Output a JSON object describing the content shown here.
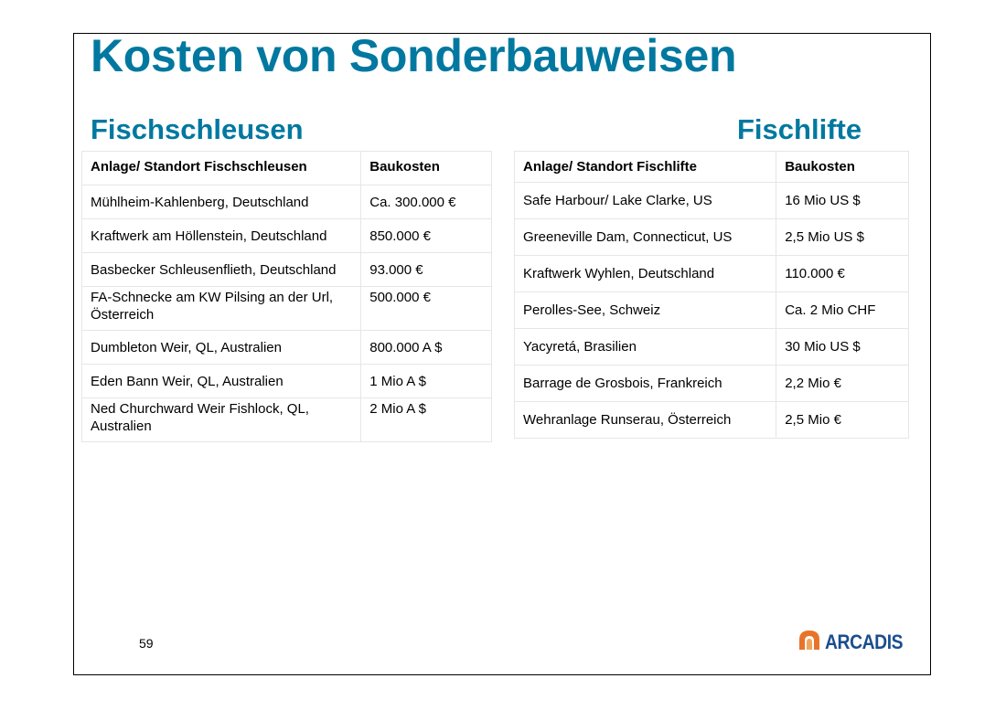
{
  "title": "Kosten von Sonderbauweisen",
  "left": {
    "heading": "Fischschleusen",
    "columns": [
      "Anlage/ Standort Fischschleusen",
      "Baukosten"
    ],
    "rows": [
      [
        "Mühlheim-Kahlenberg, Deutschland",
        "Ca. 300.000 €"
      ],
      [
        "Kraftwerk am Höllenstein, Deutschland",
        "850.000 €"
      ],
      [
        "Basbecker Schleusenflieth, Deutschland",
        "93.000 €"
      ],
      [
        "FA-Schnecke am KW Pilsing an der Url, Österreich",
        "500.000 €"
      ],
      [
        "Dumbleton Weir, QL, Australien",
        "800.000 A $"
      ],
      [
        "Eden Bann Weir, QL, Australien",
        "1 Mio A $"
      ],
      [
        "Ned Churchward Weir Fishlock, QL, Australien",
        "2 Mio A $"
      ]
    ]
  },
  "right": {
    "heading": "Fischlifte",
    "columns": [
      "Anlage/ Standort Fischlifte",
      "Baukosten"
    ],
    "rows": [
      [
        "Safe Harbour/ Lake Clarke, US",
        "16 Mio US $"
      ],
      [
        "Greeneville Dam, Connecticut, US",
        "2,5 Mio US $"
      ],
      [
        "Kraftwerk Wyhlen, Deutschland",
        "110.000 €"
      ],
      [
        "Perolles-See, Schweiz",
        "Ca. 2 Mio CHF"
      ],
      [
        "Yacyretá, Brasilien",
        "30 Mio US $"
      ],
      [
        "Barrage de Grosbois, Frankreich",
        "2,2 Mio €"
      ],
      [
        "Wehranlage Runserau, Österreich",
        "2,5 Mio €"
      ]
    ]
  },
  "footer": {
    "page_number": "59",
    "logo_text": "ARCADIS",
    "logo_icon": "arcadis-logo-icon"
  },
  "colors": {
    "heading": "#0078a0",
    "logo_blue": "#1a4e8e",
    "logo_orange": "#e8742a"
  }
}
